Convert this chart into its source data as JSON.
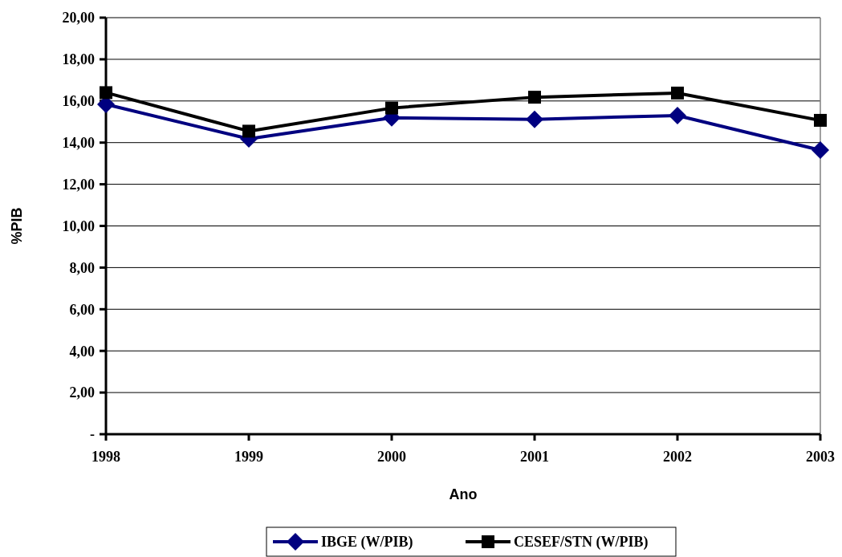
{
  "chart_data": {
    "type": "line",
    "xlabel": "Ano",
    "ylabel": "%PIB",
    "categories": [
      "1998",
      "1999",
      "2000",
      "2001",
      "2002",
      "2003"
    ],
    "series": [
      {
        "name": "IBGE (W/PIB)",
        "color": "#000080",
        "marker": "diamond",
        "values": [
          15.84,
          14.18,
          15.19,
          15.12,
          15.3,
          13.64
        ]
      },
      {
        "name": "CESEF/STN (W/PIB)",
        "color": "#000000",
        "marker": "square",
        "values": [
          16.4,
          14.55,
          15.66,
          16.18,
          16.38,
          15.07
        ]
      }
    ],
    "ylim": [
      0,
      20
    ],
    "yticks": [
      {
        "value": 0,
        "label": "-"
      },
      {
        "value": 2,
        "label": "2,00"
      },
      {
        "value": 4,
        "label": "4,00"
      },
      {
        "value": 6,
        "label": "6,00"
      },
      {
        "value": 8,
        "label": "8,00"
      },
      {
        "value": 10,
        "label": "10,00"
      },
      {
        "value": 12,
        "label": "12,00"
      },
      {
        "value": 14,
        "label": "14,00"
      },
      {
        "value": 16,
        "label": "16,00"
      },
      {
        "value": 18,
        "label": "18,00"
      },
      {
        "value": 20,
        "label": "20,00"
      }
    ],
    "grid": "y",
    "legend": "bottom"
  }
}
